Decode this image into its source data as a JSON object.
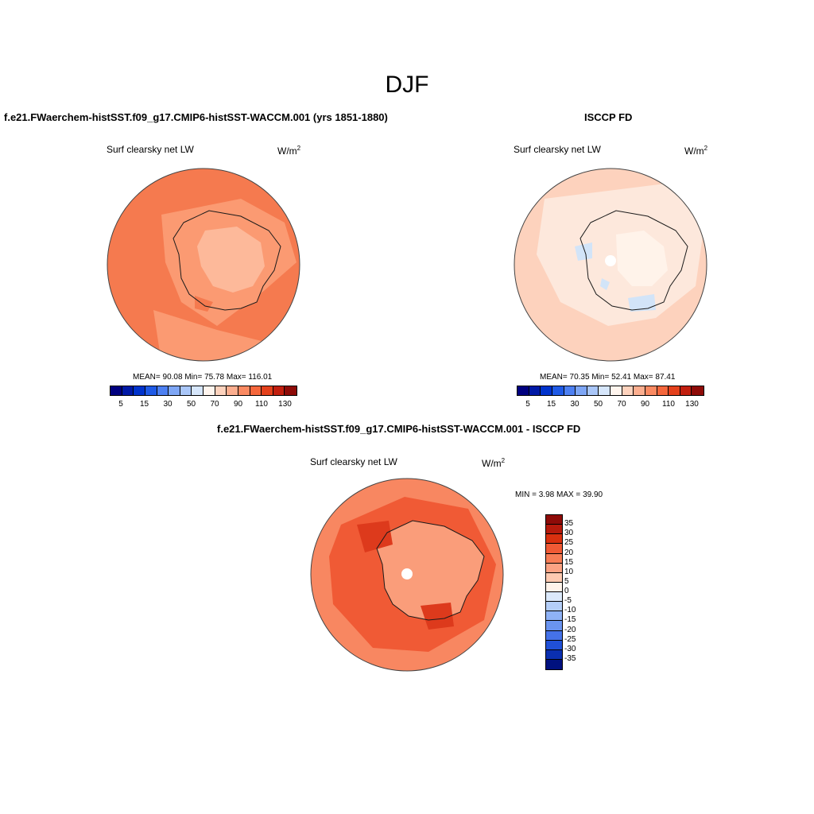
{
  "page": {
    "title": "DJF"
  },
  "palette": {
    "ocean_a": "#f57a4f",
    "land_a": "#fb9a72",
    "interior_a": "#fdb99a",
    "ocean_b": "#fdd2bd",
    "land_b": "#fde8dc",
    "interior_b": "#fff3ea",
    "ice_b": "#d2e4f8",
    "ocean_c": "#f05a35",
    "ring_c": "#f88761",
    "land_c": "#fa9d7a",
    "dark_c": "#dd3a1c",
    "white": "#ffffff",
    "coast": "#1a1a1a"
  },
  "chart_data": [
    {
      "type": "heatmap",
      "title": "f.e21.FWaerchem-histSST.f09_g17.CMIP6-histSST-WACCM.001 (yrs 1851-1880)",
      "left_label": "Surf clearsky net LW",
      "units_base": "W/m",
      "units_exp": "2",
      "stats": {
        "mean_label": "MEAN=",
        "mean": "90.08",
        "min_label": "Min=",
        "min": "75.78",
        "max_label": "Max=",
        "max": "116.01"
      },
      "colorbar": {
        "colors": [
          "#00007f",
          "#0019a6",
          "#0033cc",
          "#1f5ae6",
          "#4d80f2",
          "#7ea6f5",
          "#a9c6f8",
          "#d6e6fb",
          "#fff5ee",
          "#fdd2bd",
          "#fcae8f",
          "#fb8a62",
          "#f5673c",
          "#e4411c",
          "#c21f0f",
          "#8e0b08"
        ],
        "tick_labels": [
          "5",
          "15",
          "30",
          "50",
          "70",
          "90",
          "110",
          "130"
        ]
      }
    },
    {
      "type": "heatmap",
      "title": "ISCCP FD",
      "left_label": "Surf clearsky net LW",
      "units_base": "W/m",
      "units_exp": "2",
      "stats": {
        "mean_label": "MEAN=",
        "mean": "70.35",
        "min_label": "Min=",
        "min": "52.41",
        "max_label": "Max=",
        "max": "87.41"
      },
      "colorbar": {
        "colors": [
          "#00007f",
          "#0019a6",
          "#0033cc",
          "#1f5ae6",
          "#4d80f2",
          "#7ea6f5",
          "#a9c6f8",
          "#d6e6fb",
          "#fff5ee",
          "#fdd2bd",
          "#fcae8f",
          "#fb8a62",
          "#f5673c",
          "#e4411c",
          "#c21f0f",
          "#8e0b08"
        ],
        "tick_labels": [
          "5",
          "15",
          "30",
          "50",
          "70",
          "90",
          "110",
          "130"
        ]
      }
    },
    {
      "type": "heatmap",
      "title": "f.e21.FWaerchem-histSST.f09_g17.CMIP6-histSST-WACCM.001 - ISCCP FD",
      "left_label": "Surf clearsky net LW",
      "units_base": "W/m",
      "units_exp": "2",
      "minmax": {
        "min_label": "MIN =",
        "min": "3.98",
        "max_label": "MAX =",
        "max": "39.90"
      },
      "colorbar": {
        "colors": [
          "#8e0b08",
          "#b61a0c",
          "#d9300f",
          "#f05a35",
          "#f77d56",
          "#fba283",
          "#fdc9b0",
          "#fff3ea",
          "#dbe9fb",
          "#b4cef8",
          "#8fb2f6",
          "#6a94f0",
          "#4572e8",
          "#2050d6",
          "#0a2fb0",
          "#00117f"
        ],
        "tick_labels": [
          "35",
          "30",
          "25",
          "20",
          "15",
          "10",
          "5",
          "0",
          "-5",
          "-10",
          "-15",
          "-20",
          "-25",
          "-30",
          "-35"
        ]
      }
    }
  ]
}
